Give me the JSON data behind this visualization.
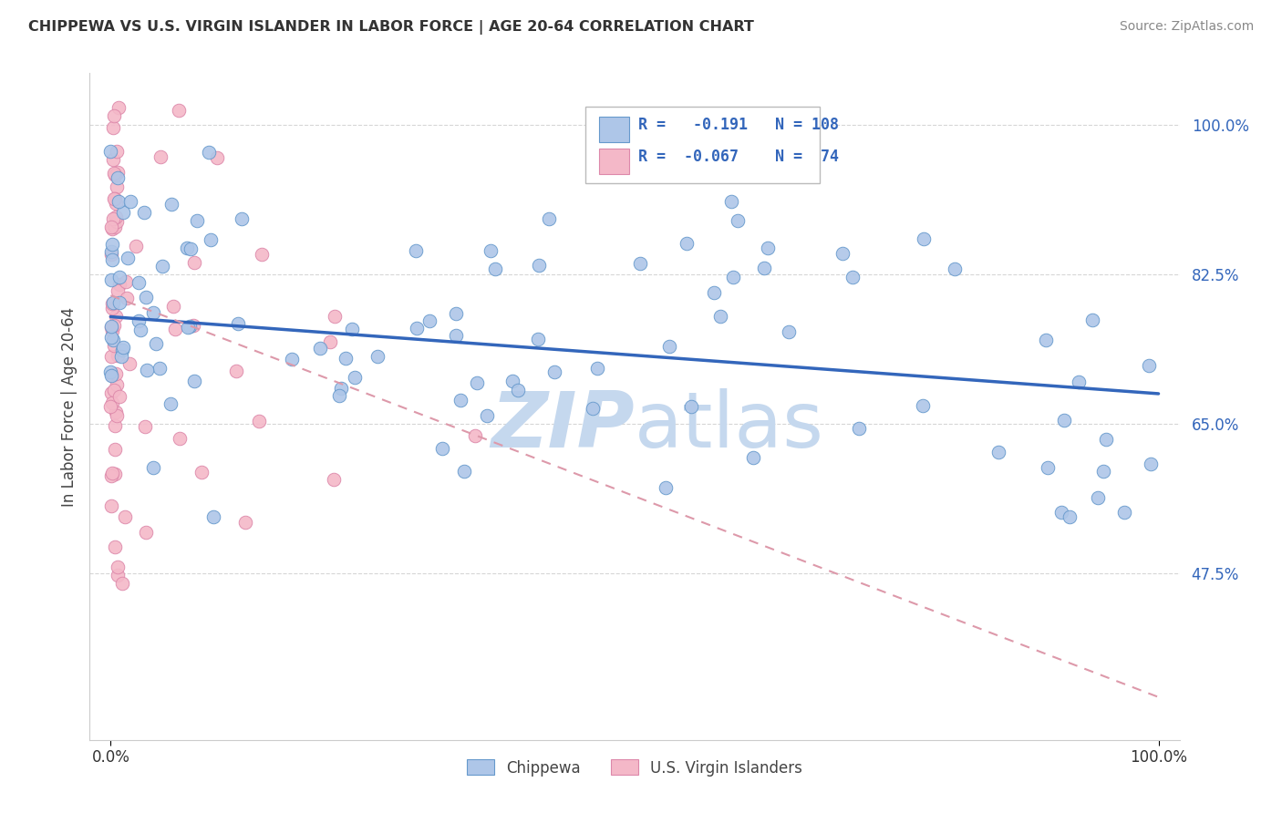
{
  "title": "CHIPPEWA VS U.S. VIRGIN ISLANDER IN LABOR FORCE | AGE 20-64 CORRELATION CHART",
  "source": "Source: ZipAtlas.com",
  "ylabel": "In Labor Force | Age 20-64",
  "chippewa_R": -0.191,
  "chippewa_N": 108,
  "virgin_R": -0.067,
  "virgin_N": 74,
  "chippewa_color": "#aec6e8",
  "chippewa_edge_color": "#6699cc",
  "chippewa_line_color": "#3366bb",
  "virgin_color": "#f4b8c8",
  "virgin_edge_color": "#dd88aa",
  "virgin_line_color": "#dd99aa",
  "watermark_color": "#c5d8ee",
  "grid_color": "#cccccc",
  "ytick_color": "#3366bb",
  "xtick_color": "#333333",
  "title_color": "#333333",
  "source_color": "#888888",
  "legend_text_color": "#3366bb",
  "blue_line_y0": 0.775,
  "blue_line_y1": 0.685,
  "pink_line_y0": 0.8,
  "pink_line_y1": 0.33,
  "xlim": [
    -0.02,
    1.02
  ],
  "ylim": [
    0.28,
    1.06
  ]
}
